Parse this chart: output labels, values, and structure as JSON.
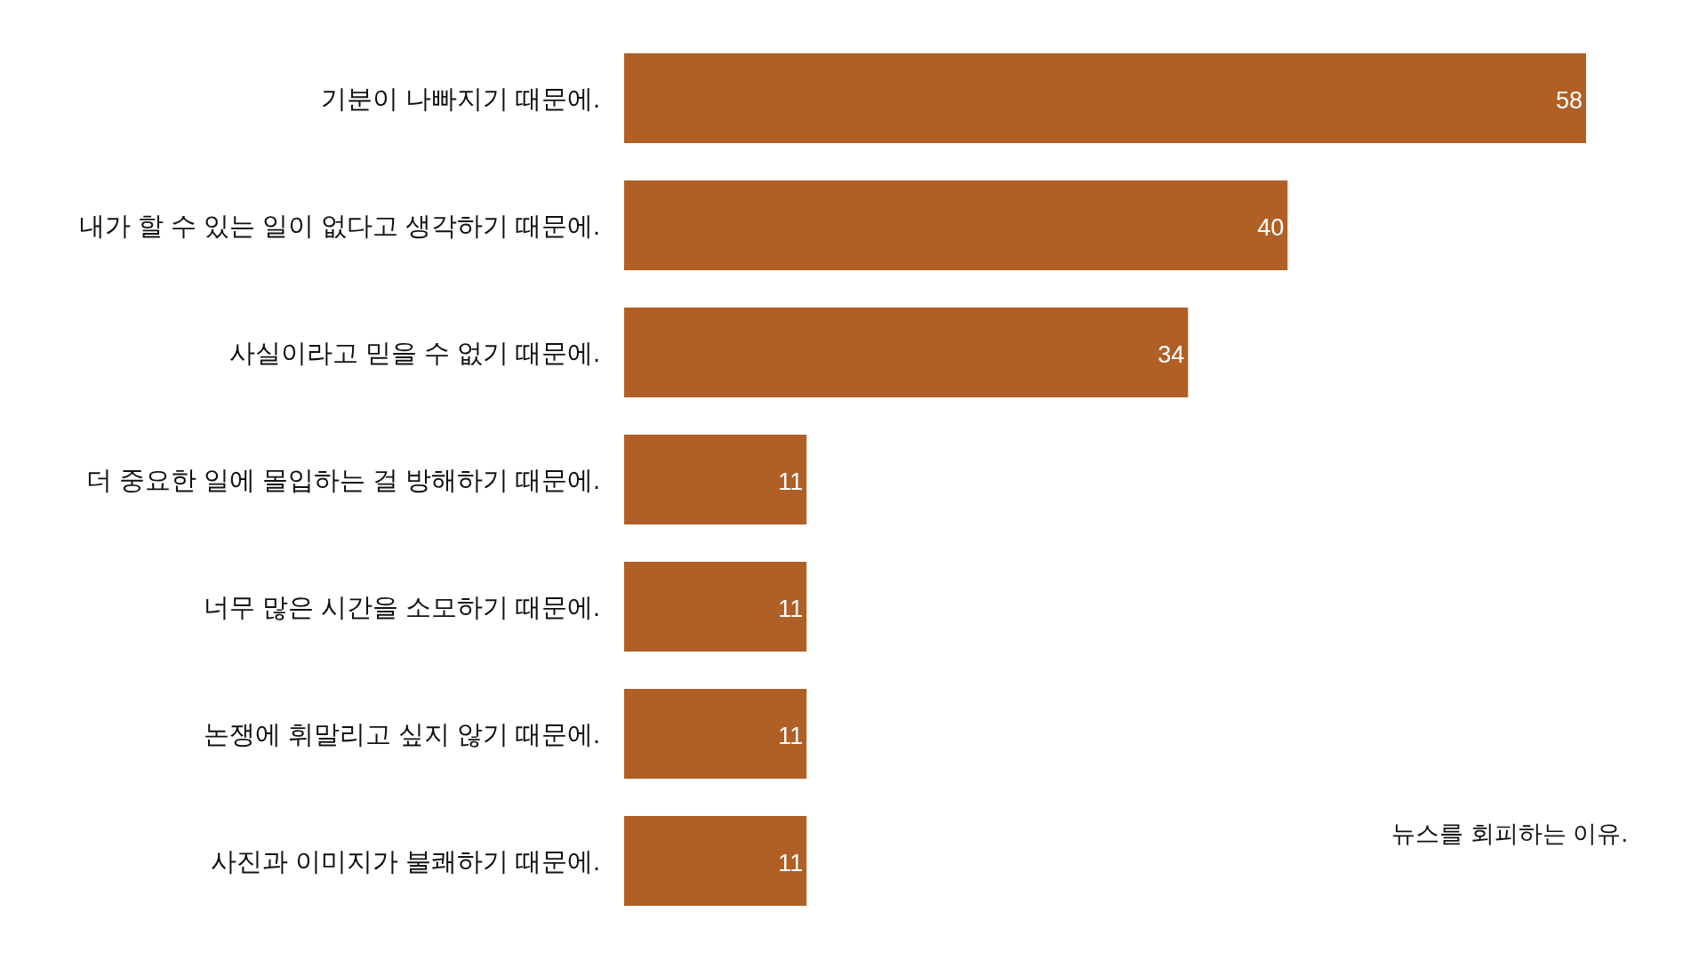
{
  "chart_data": {
    "type": "bar",
    "orientation": "horizontal",
    "categories": [
      "기분이 나빠지기 때문에.",
      "내가 할 수 있는 일이 없다고 생각하기 때문에.",
      "사실이라고 믿을 수 없기 때문에.",
      "더 중요한 일에 몰입하는 걸 방해하기 때문에.",
      "너무 많은 시간을 소모하기 때문에.",
      "논쟁에 휘말리고 싶지 않기 때문에.",
      "사진과 이미지가 불쾌하기 때문에."
    ],
    "values": [
      58,
      40,
      34,
      11,
      11,
      11,
      11
    ],
    "color": "#b06026",
    "data_labels": true,
    "annotations": [
      "뉴스를 회피하는 이유."
    ]
  }
}
